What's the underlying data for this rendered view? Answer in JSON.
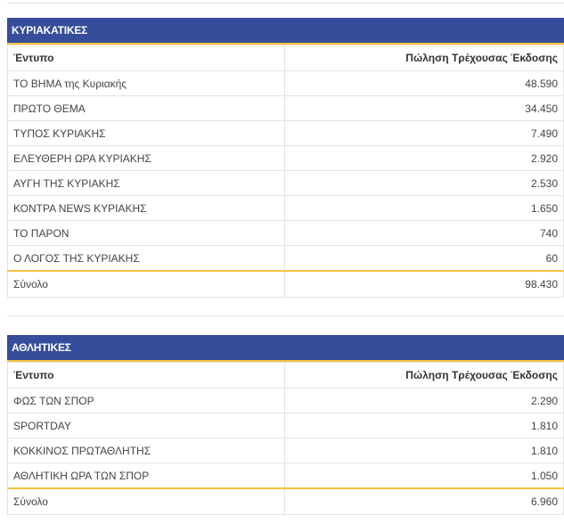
{
  "sections": [
    {
      "title": "ΚΥΡΙΑΚΑΤΙΚΕΣ",
      "col_name": "Έντυπο",
      "col_sales": "Πώληση Τρέχουσας Έκδοσης",
      "rows": [
        {
          "name": "ΤΟ ΒΗΜΑ της Κυριακής",
          "sales": "48.590"
        },
        {
          "name": "ΠΡΩΤΟ ΘΕΜΑ",
          "sales": "34.450"
        },
        {
          "name": "ΤΥΠΟΣ ΚΥΡΙΑΚΗΣ",
          "sales": "7.490"
        },
        {
          "name": "ΕΛΕΥΘΕΡΗ ΩΡΑ ΚΥΡΙΑΚΗΣ",
          "sales": "2.920"
        },
        {
          "name": "ΑΥΓΗ ΤΗΣ ΚΥΡΙΑΚΗΣ",
          "sales": "2.530"
        },
        {
          "name": "ΚΟΝΤΡΑ NEWS ΚΥΡΙΑΚΗΣ",
          "sales": "1.650"
        },
        {
          "name": "ΤΟ ΠΑΡΟΝ",
          "sales": "740"
        },
        {
          "name": "Ο ΛΟΓΟΣ ΤΗΣ ΚΥΡΙΑΚΗΣ",
          "sales": "60"
        }
      ],
      "total_label": "Σύνολο",
      "total_value": "98.430"
    },
    {
      "title": "ΑΘΛΗΤΙΚΕΣ",
      "col_name": "Έντυπο",
      "col_sales": "Πώληση Τρέχουσας Έκδοσης",
      "rows": [
        {
          "name": "ΦΩΣ ΤΩΝ ΣΠΟΡ",
          "sales": "2.290"
        },
        {
          "name": "SPORTDAY",
          "sales": "1.810"
        },
        {
          "name": "ΚΟΚΚΙΝΟΣ ΠΡΩΤΑΘΛΗΤΗΣ",
          "sales": "1.810"
        },
        {
          "name": "ΑΘΛΗΤΙΚΗ ΩΡΑ ΤΩΝ ΣΠΟΡ",
          "sales": "1.050"
        }
      ],
      "total_label": "Σύνολο",
      "total_value": "6.960"
    }
  ],
  "colors": {
    "header_bg": "#354d9a",
    "accent": "#f5c242",
    "border": "#e3e3e3"
  }
}
